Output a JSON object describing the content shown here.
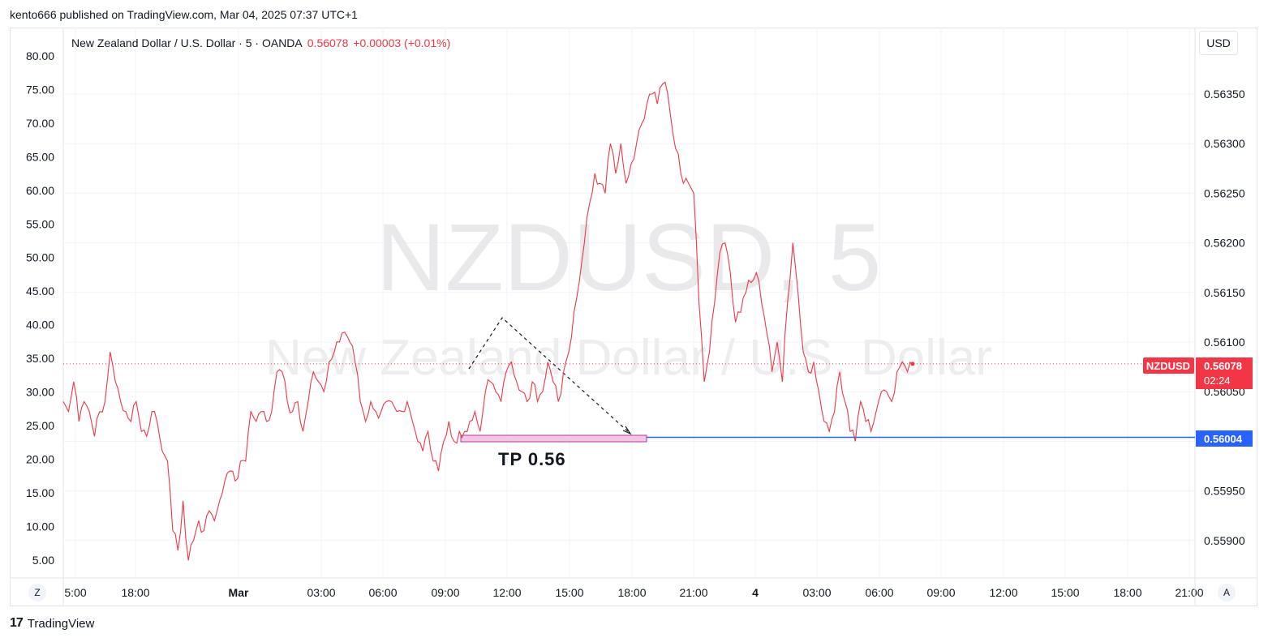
{
  "header": {
    "published": "kento666 published on TradingView.com, Mar 04, 2025 07:37 UTC+1"
  },
  "legend": {
    "title": "New Zealand Dollar / U.S. Dollar · 5 · OANDA",
    "price": "0.56078",
    "change": "+0.00003 (+0.01%)"
  },
  "watermark": {
    "symbol": "NZDUSD, 5",
    "name": "New Zealand Dollar / U.S. Dollar"
  },
  "currency_button": "USD",
  "corner_left": "Z",
  "corner_right": "A",
  "footer": {
    "logo": "17",
    "brand": "TradingView"
  },
  "annotation": {
    "tp_label": "TP 0.56"
  },
  "price_tag": {
    "symbol": "NZDUSD",
    "price": "0.56078",
    "countdown": "02:24"
  },
  "level_tag": {
    "price": "0.56004"
  },
  "colors": {
    "line": "#f23645",
    "level": "#2962ff",
    "grid": "#f0f3fa",
    "tp_fill": "#f3c6e3"
  },
  "chart_data": {
    "type": "line",
    "title": "New Zealand Dollar / U.S. Dollar · 5 · OANDA",
    "x_ticks": [
      "5:00",
      "18:00",
      "Mar",
      "03:00",
      "06:00",
      "09:00",
      "12:00",
      "15:00",
      "18:00",
      "21:00",
      "4",
      "03:00",
      "06:00",
      "09:00",
      "12:00",
      "15:00",
      "18:00",
      "21:00"
    ],
    "left_axis": {
      "ticks": [
        "80.00",
        "75.00",
        "70.00",
        "65.00",
        "60.00",
        "55.00",
        "50.00",
        "45.00",
        "40.00",
        "35.00",
        "30.00",
        "25.00",
        "20.00",
        "15.00",
        "10.00",
        "5.00"
      ]
    },
    "right_axis": {
      "ticks": [
        "0.56350",
        "0.56300",
        "0.56250",
        "0.56200",
        "0.56150",
        "0.56100",
        "0.56050",
        "0.56000",
        "0.55950",
        "0.55900"
      ]
    },
    "series": [
      {
        "values": [
          0.5604,
          0.5603,
          0.5606,
          0.5602,
          0.5604,
          0.5603,
          0.56005,
          0.5603,
          0.5604,
          0.5609,
          0.5606,
          0.5604,
          0.5603,
          0.5602,
          0.5604,
          0.5601,
          0.56005,
          0.5603,
          0.5602,
          0.5599,
          0.5598,
          0.5591,
          0.5589,
          0.5594,
          0.5588,
          0.559,
          0.5592,
          0.5591,
          0.5593,
          0.5592,
          0.5594,
          0.5596,
          0.5597,
          0.5596,
          0.5598,
          0.5598,
          0.5603,
          0.5602,
          0.5603,
          0.5602,
          0.5603,
          0.5607,
          0.5607,
          0.5604,
          0.5603,
          0.5604,
          0.5601,
          0.5604,
          0.5607,
          0.5606,
          0.5605,
          0.5608,
          0.5609,
          0.561,
          0.5611,
          0.561,
          0.5608,
          0.5604,
          0.5602,
          0.5604,
          0.5603,
          0.5603,
          0.5604,
          0.5604,
          0.5603,
          0.5603,
          0.5604,
          0.5602,
          0.56,
          0.5599,
          0.5601,
          0.5598,
          0.5597,
          0.56,
          0.5602,
          0.56,
          0.5601,
          0.5601,
          0.5602,
          0.5603,
          0.5601,
          0.5605,
          0.5606,
          0.5605,
          0.5604,
          0.5607,
          0.5608,
          0.5606,
          0.5605,
          0.5604,
          0.5606,
          0.5604,
          0.5605,
          0.5608,
          0.5606,
          0.5604,
          0.5607,
          0.5609,
          0.5613,
          0.5616,
          0.562,
          0.5624,
          0.5627,
          0.5626,
          0.5625,
          0.563,
          0.5627,
          0.563,
          0.5626,
          0.5628,
          0.563,
          0.5632,
          0.5634,
          0.5635,
          0.5634,
          0.5636,
          0.5635,
          0.5631,
          0.5629,
          0.5626,
          0.5626,
          0.5625,
          0.5614,
          0.5606,
          0.5609,
          0.5614,
          0.5619,
          0.562,
          0.5617,
          0.5612,
          0.5613,
          0.5615,
          0.5616,
          0.5617,
          0.5614,
          0.5611,
          0.5607,
          0.561,
          0.5606,
          0.5614,
          0.562,
          0.5615,
          0.5609,
          0.5607,
          0.5608,
          0.5605,
          0.5602,
          0.5601,
          0.5603,
          0.5607,
          0.5604,
          0.5601,
          0.56,
          0.5604,
          0.5602,
          0.5601,
          0.5603,
          0.5605,
          0.5605,
          0.5604,
          0.5607,
          0.5608,
          0.5607,
          0.56078
        ]
      }
    ],
    "level": 0.56004,
    "last": 0.56078
  }
}
